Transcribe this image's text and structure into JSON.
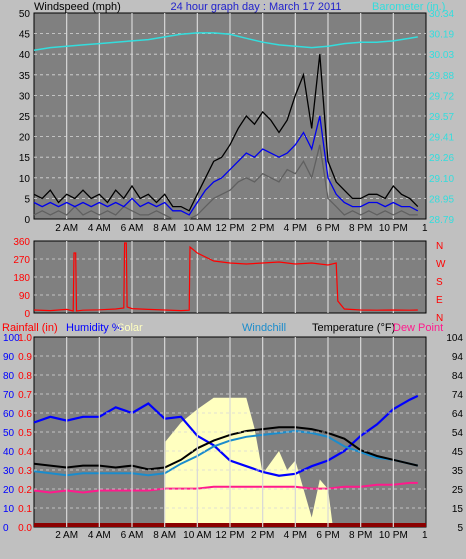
{
  "colors": {
    "background": "#c0c0c0",
    "plot": "#808080",
    "grid": "#d8d8d8",
    "wind_avg": "#0000ee",
    "wind_gust": "#000000",
    "wind_low": "#606060",
    "barometer": "#33dddd",
    "direction": "#ff0000",
    "rain": "#ff0000",
    "humidity": "#0000ff",
    "solar": "#ffffc0",
    "windchill": "#1a8ccc",
    "temperature": "#000000",
    "dew_point": "#ff1a8c"
  },
  "chart_data": [
    {
      "type": "line",
      "title": "24 hour graph day : March 17 2011",
      "ylabel": "Windspeed (mph)",
      "y2label": "Barometer (in.)",
      "x_ticks": [
        "2 AM",
        "4 AM",
        "6 AM",
        "8 AM",
        "10 AM",
        "12 PM",
        "2 PM",
        "4 PM",
        "6 PM",
        "8 PM",
        "10 PM",
        "1"
      ],
      "y_ticks": [
        "0",
        "5",
        "10",
        "15",
        "20",
        "25",
        "30",
        "35",
        "40",
        "45",
        "50"
      ],
      "y2_ticks": [
        "28.79",
        "28.95",
        "29.10",
        "29.26",
        "29.41",
        "29.57",
        "29.72",
        "29.88",
        "30.03",
        "30.19",
        "30.34"
      ],
      "ylim": [
        0,
        50
      ],
      "y2lim": [
        28.79,
        30.34
      ],
      "grid": true,
      "series": [
        {
          "key": "gust",
          "axis": "left",
          "x": [
            0,
            0.5,
            1,
            1.5,
            2,
            2.5,
            3,
            3.5,
            4,
            4.5,
            5,
            5.5,
            6,
            6.5,
            7,
            7.5,
            8,
            8.5,
            9,
            9.5,
            10,
            10.5,
            11,
            11.5,
            12,
            12.5,
            13,
            13.5,
            14,
            14.5,
            15,
            15.5,
            16,
            16.5,
            17,
            17.5,
            18,
            18.5,
            19,
            19.5,
            20,
            20.5,
            21,
            21.5,
            22,
            22.5,
            23,
            23.5
          ],
          "values": [
            6,
            5,
            7,
            4,
            6,
            5,
            7,
            5,
            6,
            4,
            7,
            5,
            8,
            5,
            6,
            4,
            6,
            3,
            3,
            2,
            6,
            10,
            14,
            15,
            18,
            22,
            25,
            23,
            26,
            24,
            21,
            24,
            30,
            35,
            22,
            40,
            14,
            9,
            7,
            5,
            5,
            6,
            6,
            5,
            8,
            6,
            5,
            3
          ]
        },
        {
          "key": "avg",
          "axis": "left",
          "x": [
            0,
            0.5,
            1,
            1.5,
            2,
            2.5,
            3,
            3.5,
            4,
            4.5,
            5,
            5.5,
            6,
            6.5,
            7,
            7.5,
            8,
            8.5,
            9,
            9.5,
            10,
            10.5,
            11,
            11.5,
            12,
            12.5,
            13,
            13.5,
            14,
            14.5,
            15,
            15.5,
            16,
            16.5,
            17,
            17.5,
            18,
            18.5,
            19,
            19.5,
            20,
            20.5,
            21,
            21.5,
            22,
            22.5,
            23,
            23.5
          ],
          "values": [
            4,
            3,
            4,
            3,
            4,
            3,
            4,
            3,
            4,
            3,
            4,
            3,
            5,
            3,
            4,
            3,
            4,
            2,
            2,
            1,
            4,
            7,
            9,
            10,
            12,
            14,
            16,
            15,
            17,
            16,
            15,
            16,
            18,
            21,
            17,
            25,
            10,
            6,
            4,
            3,
            3,
            4,
            4,
            3,
            4,
            3,
            3,
            2
          ]
        },
        {
          "key": "low",
          "axis": "left",
          "x": [
            0,
            0.5,
            1,
            1.5,
            2,
            2.5,
            3,
            3.5,
            4,
            4.5,
            5,
            5.5,
            6,
            6.5,
            7,
            7.5,
            8,
            8.5,
            9,
            9.5,
            10,
            10.5,
            11,
            11.5,
            12,
            12.5,
            13,
            13.5,
            14,
            14.5,
            15,
            15.5,
            16,
            16.5,
            17,
            17.5,
            18,
            18.5,
            19,
            19.5,
            20,
            20.5,
            21,
            21.5,
            22,
            22.5,
            23,
            23.5
          ],
          "values": [
            1,
            2,
            1,
            2,
            1,
            3,
            1,
            2,
            1,
            2,
            1,
            3,
            2,
            1,
            1,
            2,
            1,
            0,
            0,
            0,
            1,
            3,
            5,
            6,
            7,
            9,
            10,
            9,
            11,
            10,
            9,
            12,
            11,
            14,
            10,
            18,
            5,
            3,
            1,
            2,
            1,
            2,
            1,
            2,
            1,
            2,
            1,
            1
          ]
        },
        {
          "key": "barometer",
          "axis": "right",
          "x": [
            0,
            1,
            2,
            3,
            4,
            5,
            6,
            7,
            8,
            9,
            10,
            11,
            12,
            13,
            14,
            15,
            16,
            17,
            18,
            19,
            20,
            21,
            22,
            23,
            23.5
          ],
          "values": [
            30.06,
            30.08,
            30.09,
            30.1,
            30.11,
            30.12,
            30.13,
            30.14,
            30.16,
            30.18,
            30.19,
            30.19,
            30.18,
            30.15,
            30.12,
            30.1,
            30.09,
            30.08,
            30.09,
            30.11,
            30.12,
            30.12,
            30.13,
            30.15,
            30.16
          ]
        }
      ]
    },
    {
      "type": "line",
      "y_ticks": [
        "0",
        "90",
        "180",
        "270",
        "360"
      ],
      "y2_ticks": [
        "N",
        "W",
        "S",
        "E",
        "N"
      ],
      "ylim": [
        0,
        360
      ],
      "grid": true,
      "series": [
        {
          "key": "direction",
          "x": [
            0,
            1,
            2,
            2.4,
            2.45,
            2.55,
            2.6,
            3,
            4,
            5,
            5.5,
            5.55,
            5.65,
            5.7,
            6,
            7,
            8,
            9,
            9.5,
            9.55,
            10,
            11,
            12,
            13,
            14,
            15,
            16,
            17,
            18,
            18.5,
            18.6,
            19,
            20,
            21,
            22,
            23,
            23.5
          ],
          "values": [
            15,
            12,
            18,
            10,
            300,
            300,
            10,
            14,
            16,
            20,
            25,
            350,
            350,
            30,
            22,
            18,
            15,
            12,
            14,
            330,
            300,
            260,
            250,
            245,
            250,
            255,
            245,
            250,
            240,
            250,
            60,
            20,
            15,
            14,
            15,
            14,
            15
          ]
        }
      ]
    },
    {
      "type": "line",
      "legend": [
        "Rainfall (in)",
        "Humidity %",
        "Solar",
        "Windchill",
        "Temperature (°F)",
        "Dew Point"
      ],
      "y_ticks_humidity": [
        "0",
        "10",
        "20",
        "30",
        "40",
        "50",
        "60",
        "70",
        "80",
        "90",
        "100"
      ],
      "y_ticks_rain": [
        "0.0",
        "0.1",
        "0.2",
        "0.3",
        "0.4",
        "0.5",
        "0.6",
        "0.7",
        "0.8",
        "0.9",
        "1.0"
      ],
      "y2_ticks": [
        "5",
        "15",
        "25",
        "35",
        "45",
        "54",
        "64",
        "74",
        "84",
        "94",
        "104"
      ],
      "x_ticks": [
        "2 AM",
        "4 AM",
        "6 AM",
        "8 AM",
        "10 AM",
        "12 PM",
        "2 PM",
        "4 PM",
        "6 PM",
        "8 PM",
        "10 PM",
        "1"
      ],
      "humidity_lim": [
        0,
        100
      ],
      "temperature_lim": [
        5,
        104
      ],
      "grid": true,
      "series": [
        {
          "key": "solar",
          "axis": "humidity",
          "x": [
            0,
            5,
            8,
            8.05,
            9,
            10,
            11,
            12,
            13,
            13.5,
            14,
            15,
            15.5,
            16,
            17,
            17.5,
            18,
            18.3,
            18.4,
            23.5
          ],
          "values": [
            0,
            0,
            0,
            45,
            55,
            62,
            68,
            68,
            68,
            52,
            28,
            40,
            30,
            35,
            5,
            25,
            20,
            0,
            0,
            0
          ]
        },
        {
          "key": "humidity",
          "axis": "humidity",
          "x": [
            0,
            1,
            2,
            3,
            4,
            5,
            6,
            7,
            8,
            9,
            10,
            11,
            12,
            13,
            14,
            15,
            16,
            17,
            18,
            19,
            20,
            21,
            22,
            23,
            23.5
          ],
          "values": [
            55,
            58,
            56,
            58,
            58,
            63,
            60,
            65,
            57,
            58,
            48,
            43,
            35,
            32,
            29,
            27,
            28,
            32,
            35,
            40,
            48,
            54,
            62,
            67,
            69
          ]
        },
        {
          "key": "windchill",
          "axis": "temperature",
          "x": [
            0,
            1,
            2,
            3,
            4,
            5,
            6,
            7,
            8,
            9,
            10,
            11,
            12,
            13,
            14,
            15,
            16,
            17,
            18,
            19,
            20,
            21,
            22,
            23,
            23.5
          ],
          "values": [
            34,
            33,
            32,
            33,
            33,
            33,
            33,
            32,
            33,
            38,
            42,
            47,
            50,
            52,
            53,
            54,
            55,
            54,
            52,
            47,
            44,
            41,
            40,
            38,
            37
          ]
        },
        {
          "key": "temperature",
          "axis": "temperature",
          "x": [
            0,
            1,
            2,
            3,
            4,
            5,
            6,
            7,
            8,
            9,
            10,
            11,
            12,
            13,
            14,
            15,
            16,
            17,
            18,
            19,
            20,
            21,
            22,
            23,
            23.5
          ],
          "values": [
            38,
            37,
            36,
            37,
            37,
            36,
            37,
            35,
            36,
            40,
            46,
            50,
            53,
            55,
            56,
            57,
            57,
            56,
            54,
            51,
            45,
            42,
            40,
            38,
            37
          ]
        },
        {
          "key": "dew_point",
          "axis": "temperature",
          "x": [
            0,
            1,
            2,
            3,
            4,
            5,
            6,
            7,
            8,
            9,
            10,
            11,
            12,
            13,
            14,
            15,
            16,
            17,
            18,
            19,
            20,
            21,
            22,
            23,
            23.5
          ],
          "values": [
            24,
            23,
            24,
            23,
            24,
            24,
            24,
            24,
            25,
            25,
            25,
            26,
            26,
            26,
            26,
            26,
            26,
            25,
            25,
            26,
            26,
            27,
            27,
            28,
            28
          ]
        },
        {
          "key": "rainfall",
          "axis": "rain",
          "x": [
            0,
            23.5
          ],
          "values": [
            0,
            0
          ]
        }
      ]
    }
  ]
}
